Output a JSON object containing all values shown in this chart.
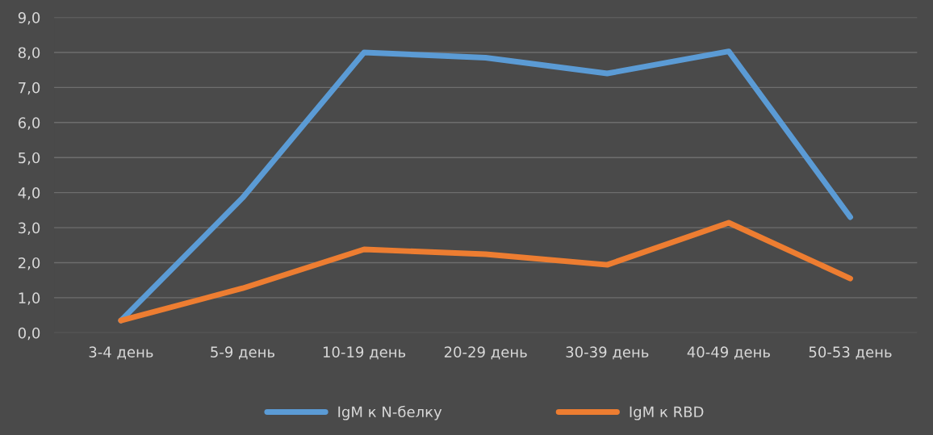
{
  "chart_data": {
    "type": "line",
    "categories": [
      "3-4 день",
      "5-9 день",
      "10-19 день",
      "20-29 день",
      "30-39 день",
      "40-49 день",
      "50-53 день"
    ],
    "series": [
      {
        "name": "IgM к N-белку",
        "color": "#5b9bd5",
        "values": [
          0.35,
          3.85,
          8.0,
          7.85,
          7.4,
          8.03,
          3.3
        ]
      },
      {
        "name": "IgM к RBD",
        "color": "#ed7d31",
        "values": [
          0.35,
          1.27,
          2.38,
          2.24,
          1.94,
          3.14,
          1.55
        ]
      }
    ],
    "ylim": [
      0,
      9
    ],
    "yticks": [
      {
        "value": 0,
        "label": "0,0"
      },
      {
        "value": 1,
        "label": "1,0"
      },
      {
        "value": 2,
        "label": "2,0"
      },
      {
        "value": 3,
        "label": "3,0"
      },
      {
        "value": 4,
        "label": "4,0"
      },
      {
        "value": 5,
        "label": "5,0"
      },
      {
        "value": 6,
        "label": "6,0"
      },
      {
        "value": 7,
        "label": "7,0"
      },
      {
        "value": 8,
        "label": "8,0"
      },
      {
        "value": 9,
        "label": "9,0"
      }
    ],
    "grid": "y",
    "legend": "bottom",
    "marker": "none",
    "line_style": "solid"
  }
}
